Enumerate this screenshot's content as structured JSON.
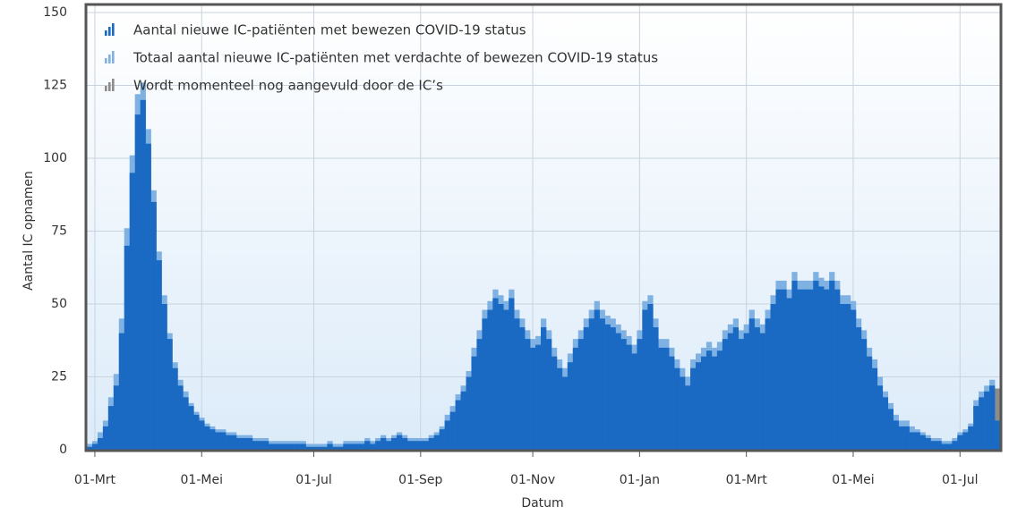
{
  "chart_data": {
    "type": "bar",
    "y_label": "Aantal IC opnamen",
    "x_label": "Datum",
    "categories": [
      null,
      "01-Mrt",
      null,
      null,
      null,
      null,
      null,
      null,
      null,
      null,
      null,
      null,
      null,
      null,
      null,
      null,
      null,
      null,
      null,
      null,
      null,
      "01-Mei",
      null,
      null,
      null,
      null,
      null,
      null,
      null,
      null,
      null,
      null,
      null,
      null,
      null,
      null,
      null,
      null,
      null,
      null,
      null,
      null,
      "01-Jul",
      null,
      null,
      null,
      null,
      null,
      null,
      null,
      null,
      null,
      null,
      null,
      null,
      null,
      null,
      null,
      null,
      null,
      null,
      null,
      "01-Sep",
      null,
      null,
      null,
      null,
      null,
      null,
      null,
      null,
      null,
      null,
      null,
      null,
      null,
      null,
      null,
      null,
      null,
      null,
      null,
      null,
      "01-Nov",
      null,
      null,
      null,
      null,
      null,
      null,
      null,
      null,
      null,
      null,
      null,
      null,
      null,
      null,
      null,
      null,
      null,
      null,
      null,
      "01-Jan",
      null,
      null,
      null,
      null,
      null,
      null,
      null,
      null,
      null,
      null,
      null,
      null,
      null,
      null,
      null,
      null,
      null,
      null,
      null,
      "01-Mrt",
      null,
      null,
      null,
      null,
      null,
      null,
      null,
      null,
      null,
      null,
      null,
      null,
      null,
      null,
      null,
      null,
      null,
      null,
      null,
      "01-Mei",
      null,
      null,
      null,
      null,
      null,
      null,
      null,
      null,
      null,
      null,
      null,
      null,
      null,
      null,
      null,
      null,
      null,
      null,
      null,
      "01-Jul",
      null,
      null,
      null,
      null,
      null,
      null,
      null
    ],
    "series": [
      {
        "name": "Aantal nieuwe IC-patiënten met bewezen COVID-19 status",
        "color": "#1a6ac4",
        "values": [
          1,
          2,
          4,
          8,
          15,
          22,
          40,
          70,
          95,
          115,
          120,
          105,
          85,
          65,
          50,
          38,
          28,
          22,
          18,
          15,
          12,
          10,
          8,
          7,
          6,
          6,
          5,
          5,
          4,
          4,
          4,
          3,
          3,
          3,
          2,
          2,
          2,
          2,
          2,
          2,
          2,
          1,
          1,
          1,
          1,
          2,
          1,
          1,
          2,
          2,
          2,
          2,
          3,
          2,
          3,
          4,
          3,
          4,
          5,
          4,
          3,
          3,
          3,
          3,
          4,
          5,
          7,
          10,
          13,
          17,
          20,
          25,
          32,
          38,
          45,
          48,
          52,
          50,
          48,
          52,
          45,
          42,
          38,
          35,
          36,
          42,
          38,
          32,
          28,
          25,
          30,
          35,
          38,
          42,
          45,
          48,
          45,
          43,
          42,
          40,
          38,
          36,
          33,
          38,
          48,
          50,
          42,
          35,
          35,
          32,
          28,
          25,
          22,
          28,
          30,
          32,
          34,
          32,
          34,
          38,
          40,
          42,
          38,
          40,
          45,
          42,
          40,
          45,
          50,
          55,
          55,
          52,
          58,
          55,
          55,
          55,
          58,
          56,
          55,
          58,
          55,
          50,
          50,
          48,
          42,
          38,
          32,
          28,
          22,
          18,
          14,
          10,
          8,
          8,
          6,
          6,
          5,
          4,
          3,
          3,
          2,
          2,
          3,
          5,
          6,
          8,
          15,
          18,
          20,
          22,
          10
        ]
      },
      {
        "name": "Totaal aantal nieuwe IC-patiënten met verdachte of bewezen COVID-19 status",
        "color": "#7fb2e3",
        "values": [
          2,
          3,
          6,
          10,
          18,
          26,
          45,
          76,
          101,
          122,
          126,
          110,
          89,
          68,
          53,
          40,
          30,
          24,
          20,
          16,
          13,
          11,
          9,
          8,
          7,
          7,
          6,
          6,
          5,
          5,
          5,
          4,
          4,
          4,
          3,
          3,
          3,
          3,
          3,
          3,
          3,
          2,
          2,
          2,
          2,
          3,
          2,
          2,
          3,
          3,
          3,
          3,
          4,
          3,
          4,
          5,
          4,
          5,
          6,
          5,
          4,
          4,
          4,
          4,
          5,
          6,
          8,
          12,
          15,
          19,
          22,
          27,
          35,
          41,
          48,
          51,
          55,
          53,
          51,
          55,
          48,
          45,
          41,
          38,
          39,
          45,
          41,
          35,
          31,
          28,
          33,
          38,
          41,
          45,
          48,
          51,
          48,
          46,
          45,
          43,
          41,
          39,
          36,
          41,
          51,
          53,
          45,
          38,
          38,
          35,
          31,
          28,
          25,
          31,
          33,
          35,
          37,
          35,
          37,
          41,
          43,
          45,
          41,
          43,
          48,
          45,
          43,
          48,
          53,
          58,
          58,
          55,
          61,
          58,
          58,
          58,
          61,
          59,
          58,
          61,
          58,
          53,
          53,
          51,
          45,
          41,
          35,
          31,
          25,
          20,
          16,
          12,
          10,
          10,
          8,
          7,
          6,
          5,
          4,
          4,
          3,
          3,
          4,
          6,
          7,
          9,
          17,
          20,
          22,
          24,
          12
        ]
      },
      {
        "name": "Wordt momenteel nog aangevuld door de IC’s",
        "color": "#8c8c8c",
        "values": [
          null,
          null,
          null,
          null,
          null,
          null,
          null,
          null,
          null,
          null,
          null,
          null,
          null,
          null,
          null,
          null,
          null,
          null,
          null,
          null,
          null,
          null,
          null,
          null,
          null,
          null,
          null,
          null,
          null,
          null,
          null,
          null,
          null,
          null,
          null,
          null,
          null,
          null,
          null,
          null,
          null,
          null,
          null,
          null,
          null,
          null,
          null,
          null,
          null,
          null,
          null,
          null,
          null,
          null,
          null,
          null,
          null,
          null,
          null,
          null,
          null,
          null,
          null,
          null,
          null,
          null,
          null,
          null,
          null,
          null,
          null,
          null,
          null,
          null,
          null,
          null,
          null,
          null,
          null,
          null,
          null,
          null,
          null,
          null,
          null,
          null,
          null,
          null,
          null,
          null,
          null,
          null,
          null,
          null,
          null,
          null,
          null,
          null,
          null,
          null,
          null,
          null,
          null,
          null,
          null,
          null,
          null,
          null,
          null,
          null,
          null,
          null,
          null,
          null,
          null,
          null,
          null,
          null,
          null,
          null,
          null,
          null,
          null,
          null,
          null,
          null,
          null,
          null,
          null,
          null,
          null,
          null,
          null,
          null,
          null,
          null,
          null,
          null,
          null,
          null,
          null,
          null,
          null,
          null,
          null,
          null,
          null,
          null,
          null,
          null,
          null,
          null,
          null,
          null,
          null,
          null,
          null,
          null,
          null,
          null,
          null,
          null,
          null,
          null,
          null,
          null,
          null,
          null,
          null,
          null,
          21
        ]
      }
    ],
    "ylim": [
      0,
      150
    ],
    "yticks": [
      0,
      25,
      50,
      75,
      100,
      125,
      150
    ],
    "grid": true
  }
}
